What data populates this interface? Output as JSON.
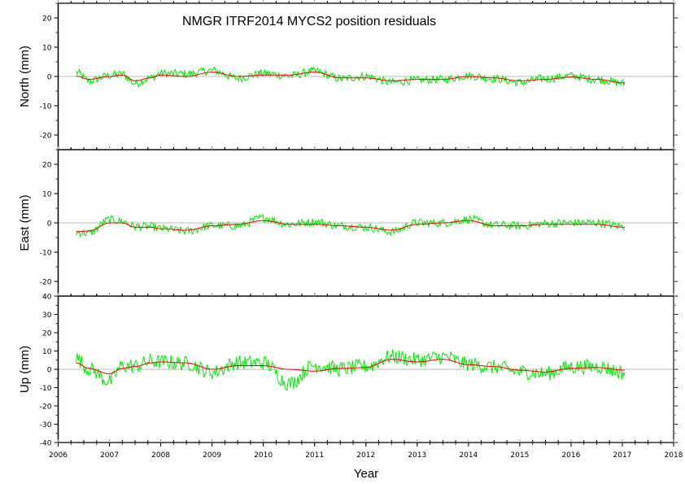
{
  "chart_data": {
    "type": "line",
    "title": "NMGR  ITRF2014 MYCS2 position residuals",
    "xlabel": "Year",
    "xlim": [
      2006,
      2018
    ],
    "x_ticks": [
      "2006",
      "2007",
      "2008",
      "2009",
      "2010",
      "2011",
      "2012",
      "2013",
      "2014",
      "2015",
      "2016",
      "2017",
      "2018"
    ],
    "colors": {
      "residuals": "#00ee00",
      "model": "#ee0000",
      "zero_line": "#bbbbbb",
      "axis": "#000000"
    },
    "panels": [
      {
        "id": "north",
        "ylabel": "North (mm)",
        "ylim": [
          -25,
          25
        ],
        "y_ticks": [
          "20",
          "10",
          "0",
          "-10",
          "-20"
        ],
        "x": [
          2006.35,
          2006.6,
          2007.0,
          2007.25,
          2007.5,
          2007.8,
          2008.0,
          2008.5,
          2009.0,
          2009.5,
          2010.0,
          2010.5,
          2011.0,
          2011.5,
          2012.0,
          2012.5,
          2013.0,
          2013.5,
          2014.0,
          2014.5,
          2015.0,
          2015.5,
          2016.0,
          2016.5,
          2017.05
        ],
        "series": [
          {
            "name": "residuals",
            "values": [
              2.5,
              -2.0,
              0.5,
              1.0,
              -3.0,
              -0.5,
              1.5,
              1.5,
              2.5,
              -1.0,
              1.5,
              0.0,
              2.0,
              -1.0,
              0.5,
              -2.5,
              -1.5,
              -1.0,
              0.5,
              -1.0,
              -2.5,
              -0.5,
              0.5,
              -1.0,
              -2.5
            ]
          },
          {
            "name": "model",
            "values": [
              0.2,
              -1.0,
              0.0,
              0.5,
              -1.5,
              -0.5,
              0.5,
              0.0,
              1.5,
              0.0,
              0.5,
              0.5,
              1.5,
              -0.5,
              -0.5,
              -1.5,
              -1.0,
              -1.0,
              0.0,
              -0.5,
              -1.5,
              -1.0,
              -0.2,
              -1.0,
              -2.2
            ]
          }
        ]
      },
      {
        "id": "east",
        "ylabel": "East (mm)",
        "ylim": [
          -25,
          25
        ],
        "y_ticks": [
          "20",
          "10",
          "0",
          "-10",
          "-20"
        ],
        "x": [
          2006.35,
          2006.6,
          2007.0,
          2007.25,
          2007.5,
          2007.8,
          2008.0,
          2008.5,
          2009.0,
          2009.5,
          2010.0,
          2010.5,
          2011.0,
          2011.5,
          2012.0,
          2012.5,
          2013.0,
          2013.5,
          2014.0,
          2014.5,
          2015.0,
          2015.5,
          2016.0,
          2016.5,
          2017.05
        ],
        "series": [
          {
            "name": "residuals",
            "values": [
              -3.5,
              -4.0,
              2.0,
              1.0,
              -1.0,
              -1.0,
              -2.0,
              -3.0,
              -1.0,
              -1.5,
              2.5,
              -0.5,
              1.0,
              -1.0,
              -1.5,
              -3.5,
              0.5,
              0.0,
              1.5,
              -0.5,
              -1.0,
              0.0,
              0.5,
              0.5,
              -1.0
            ]
          },
          {
            "name": "model",
            "values": [
              -3.0,
              -2.8,
              0.0,
              0.0,
              -1.5,
              -1.5,
              -2.0,
              -2.5,
              -1.0,
              -0.5,
              0.8,
              -0.5,
              -0.5,
              -1.0,
              -1.5,
              -2.5,
              -0.5,
              0.0,
              0.8,
              -1.0,
              -1.0,
              -0.5,
              -0.5,
              -0.5,
              -1.5
            ]
          }
        ]
      },
      {
        "id": "up",
        "ylabel": "Up (mm)",
        "ylim": [
          -40,
          40
        ],
        "y_ticks": [
          "40",
          "30",
          "20",
          "10",
          "0",
          "-10",
          "-20",
          "-30",
          "-40"
        ],
        "x": [
          2006.35,
          2006.6,
          2007.0,
          2007.25,
          2007.5,
          2007.8,
          2008.0,
          2008.5,
          2009.0,
          2009.5,
          2010.0,
          2010.5,
          2011.0,
          2011.5,
          2012.0,
          2012.5,
          2013.0,
          2013.5,
          2014.0,
          2014.5,
          2015.0,
          2015.5,
          2016.0,
          2016.5,
          2017.05
        ],
        "series": [
          {
            "name": "residuals",
            "values": [
              8.0,
              0.0,
              -10.0,
              3.0,
              2.0,
              5.0,
              4.0,
              3.0,
              -3.0,
              5.0,
              5.0,
              -14.0,
              5.0,
              0.0,
              2.0,
              8.0,
              6.0,
              8.0,
              3.0,
              1.0,
              -2.0,
              -3.0,
              2.0,
              2.0,
              -3.0
            ]
          },
          {
            "name": "model",
            "values": [
              3.5,
              0.5,
              -2.5,
              0.5,
              1.5,
              3.5,
              4.0,
              3.5,
              0.0,
              2.0,
              2.0,
              0.0,
              -1.0,
              0.5,
              1.0,
              5.5,
              4.0,
              5.5,
              2.5,
              1.5,
              -0.5,
              -1.5,
              0.5,
              1.0,
              -0.5
            ]
          }
        ]
      }
    ]
  }
}
